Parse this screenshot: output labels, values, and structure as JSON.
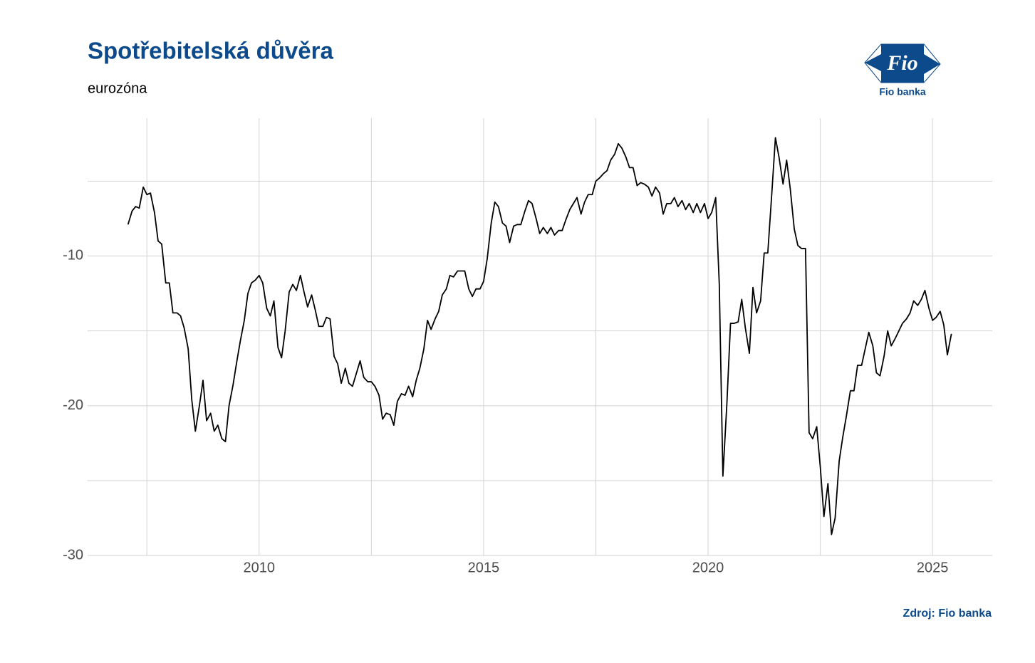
{
  "chart_data": {
    "type": "line",
    "title": "Spotřebitelská důvěra",
    "subtitle": "eurozóna",
    "source": "Zdroj: Fio banka",
    "logo": {
      "mark": "Fio",
      "name": "Fio banka"
    },
    "color": "#000000",
    "grid": true,
    "xlim": [
      2006.18,
      2026.33
    ],
    "ylim": [
      -30,
      -0.8
    ],
    "xticks": [
      2010,
      2015,
      2020,
      2025
    ],
    "yticks": [
      -30,
      -20,
      -10
    ],
    "x_minor_grid": [
      2007.5,
      2012.5,
      2017.5,
      2022.5
    ],
    "y_minor_grid": [
      -25,
      -15,
      -5
    ],
    "x": [
      2007.08,
      2007.17,
      2007.25,
      2007.33,
      2007.42,
      2007.5,
      2007.58,
      2007.67,
      2007.75,
      2007.83,
      2007.92,
      2008,
      2008.08,
      2008.17,
      2008.25,
      2008.33,
      2008.42,
      2008.5,
      2008.58,
      2008.67,
      2008.75,
      2008.83,
      2008.92,
      2009,
      2009.08,
      2009.17,
      2009.25,
      2009.33,
      2009.42,
      2009.5,
      2009.58,
      2009.67,
      2009.75,
      2009.83,
      2009.92,
      2010,
      2010.08,
      2010.17,
      2010.25,
      2010.33,
      2010.42,
      2010.5,
      2010.58,
      2010.67,
      2010.75,
      2010.83,
      2010.92,
      2011,
      2011.08,
      2011.17,
      2011.25,
      2011.33,
      2011.42,
      2011.5,
      2011.58,
      2011.67,
      2011.75,
      2011.83,
      2011.92,
      2012,
      2012.08,
      2012.17,
      2012.25,
      2012.33,
      2012.42,
      2012.5,
      2012.58,
      2012.67,
      2012.75,
      2012.83,
      2012.92,
      2013,
      2013.08,
      2013.17,
      2013.25,
      2013.33,
      2013.42,
      2013.5,
      2013.58,
      2013.67,
      2013.75,
      2013.83,
      2013.92,
      2014,
      2014.08,
      2014.17,
      2014.25,
      2014.33,
      2014.42,
      2014.5,
      2014.58,
      2014.67,
      2014.75,
      2014.83,
      2014.92,
      2015,
      2015.08,
      2015.17,
      2015.25,
      2015.33,
      2015.42,
      2015.5,
      2015.58,
      2015.67,
      2015.75,
      2015.83,
      2015.92,
      2016,
      2016.08,
      2016.17,
      2016.25,
      2016.33,
      2016.42,
      2016.5,
      2016.58,
      2016.67,
      2016.75,
      2016.83,
      2016.92,
      2017,
      2017.08,
      2017.17,
      2017.25,
      2017.33,
      2017.42,
      2017.5,
      2017.58,
      2017.67,
      2017.75,
      2017.83,
      2017.92,
      2018,
      2018.08,
      2018.17,
      2018.25,
      2018.33,
      2018.42,
      2018.5,
      2018.58,
      2018.67,
      2018.75,
      2018.83,
      2018.92,
      2019,
      2019.08,
      2019.17,
      2019.25,
      2019.33,
      2019.42,
      2019.5,
      2019.58,
      2019.67,
      2019.75,
      2019.83,
      2019.92,
      2020,
      2020.08,
      2020.17,
      2020.25,
      2020.33,
      2020.42,
      2020.5,
      2020.58,
      2020.67,
      2020.75,
      2020.83,
      2020.92,
      2021,
      2021.08,
      2021.17,
      2021.25,
      2021.33,
      2021.42,
      2021.5,
      2021.58,
      2021.67,
      2021.75,
      2021.83,
      2021.92,
      2022,
      2022.08,
      2022.17,
      2022.25,
      2022.33,
      2022.42,
      2022.5,
      2022.58,
      2022.67,
      2022.75,
      2022.83,
      2022.92,
      2023,
      2023.08,
      2023.17,
      2023.25,
      2023.33,
      2023.42,
      2023.5,
      2023.58,
      2023.67,
      2023.75,
      2023.83,
      2023.92,
      2024,
      2024.08,
      2024.17,
      2024.25,
      2024.33,
      2024.42,
      2024.5,
      2024.58,
      2024.67,
      2024.75,
      2024.83,
      2024.92,
      2025,
      2025.08,
      2025.17,
      2025.25,
      2025.33,
      2025.42
    ],
    "values": [
      -7.9,
      -7.0,
      -6.7,
      -6.8,
      -5.4,
      -5.9,
      -5.8,
      -7.1,
      -9.0,
      -9.2,
      -11.8,
      -11.8,
      -13.8,
      -13.8,
      -14.0,
      -14.8,
      -16.2,
      -19.6,
      -21.7,
      -20.0,
      -18.3,
      -21.0,
      -20.5,
      -21.7,
      -21.3,
      -22.2,
      -22.4,
      -20.0,
      -18.6,
      -17.1,
      -15.7,
      -14.3,
      -12.5,
      -11.8,
      -11.6,
      -11.3,
      -11.8,
      -13.5,
      -14.0,
      -13.0,
      -16.1,
      -16.8,
      -15.0,
      -12.4,
      -11.9,
      -12.3,
      -11.3,
      -12.4,
      -13.4,
      -12.6,
      -13.6,
      -14.7,
      -14.7,
      -14.1,
      -14.2,
      -16.7,
      -17.2,
      -18.5,
      -17.5,
      -18.5,
      -18.7,
      -17.8,
      -17.0,
      -18.1,
      -18.4,
      -18.4,
      -18.7,
      -19.3,
      -20.9,
      -20.5,
      -20.6,
      -21.3,
      -19.7,
      -19.2,
      -19.3,
      -18.7,
      -19.4,
      -18.3,
      -17.5,
      -16.2,
      -14.3,
      -14.9,
      -14.2,
      -13.7,
      -12.6,
      -12.2,
      -11.3,
      -11.4,
      -11.0,
      -11.0,
      -11.0,
      -12.2,
      -12.7,
      -12.2,
      -12.2,
      -11.7,
      -10.2,
      -7.8,
      -6.4,
      -6.7,
      -7.8,
      -8.0,
      -9.1,
      -8.0,
      -7.9,
      -7.9,
      -7.0,
      -6.3,
      -6.5,
      -7.5,
      -8.5,
      -8.1,
      -8.5,
      -8.1,
      -8.6,
      -8.3,
      -8.3,
      -7.6,
      -6.9,
      -6.5,
      -6.1,
      -7.2,
      -6.4,
      -5.9,
      -5.9,
      -5.0,
      -4.8,
      -4.5,
      -4.3,
      -3.6,
      -3.2,
      -2.5,
      -2.8,
      -3.4,
      -4.1,
      -4.1,
      -5.3,
      -5.1,
      -5.2,
      -5.4,
      -6.0,
      -5.4,
      -5.8,
      -7.2,
      -6.5,
      -6.5,
      -6.1,
      -6.7,
      -6.3,
      -6.9,
      -6.5,
      -7.1,
      -6.5,
      -7.1,
      -6.5,
      -7.5,
      -7.1,
      -6.1,
      -11.9,
      -24.7,
      -19.8,
      -14.5,
      -14.5,
      -14.4,
      -12.9,
      -14.8,
      -16.5,
      -12.1,
      -13.8,
      -13.0,
      -9.8,
      -9.8,
      -5.8,
      -2.1,
      -3.4,
      -5.2,
      -3.6,
      -5.5,
      -8.2,
      -9.3,
      -9.5,
      -9.5,
      -21.8,
      -22.2,
      -21.4,
      -24.1,
      -27.4,
      -25.2,
      -28.6,
      -27.5,
      -23.7,
      -22.1,
      -20.7,
      -19.0,
      -19.0,
      -17.3,
      -17.3,
      -16.2,
      -15.1,
      -16.0,
      -17.8,
      -18.0,
      -16.7,
      -15.0,
      -16.0,
      -15.5,
      -15.0,
      -14.5,
      -14.2,
      -13.8,
      -13.0,
      -13.3,
      -12.9,
      -12.3,
      -13.5,
      -14.3,
      -14.1,
      -13.7,
      -14.6,
      -16.6,
      -15.2
    ]
  }
}
